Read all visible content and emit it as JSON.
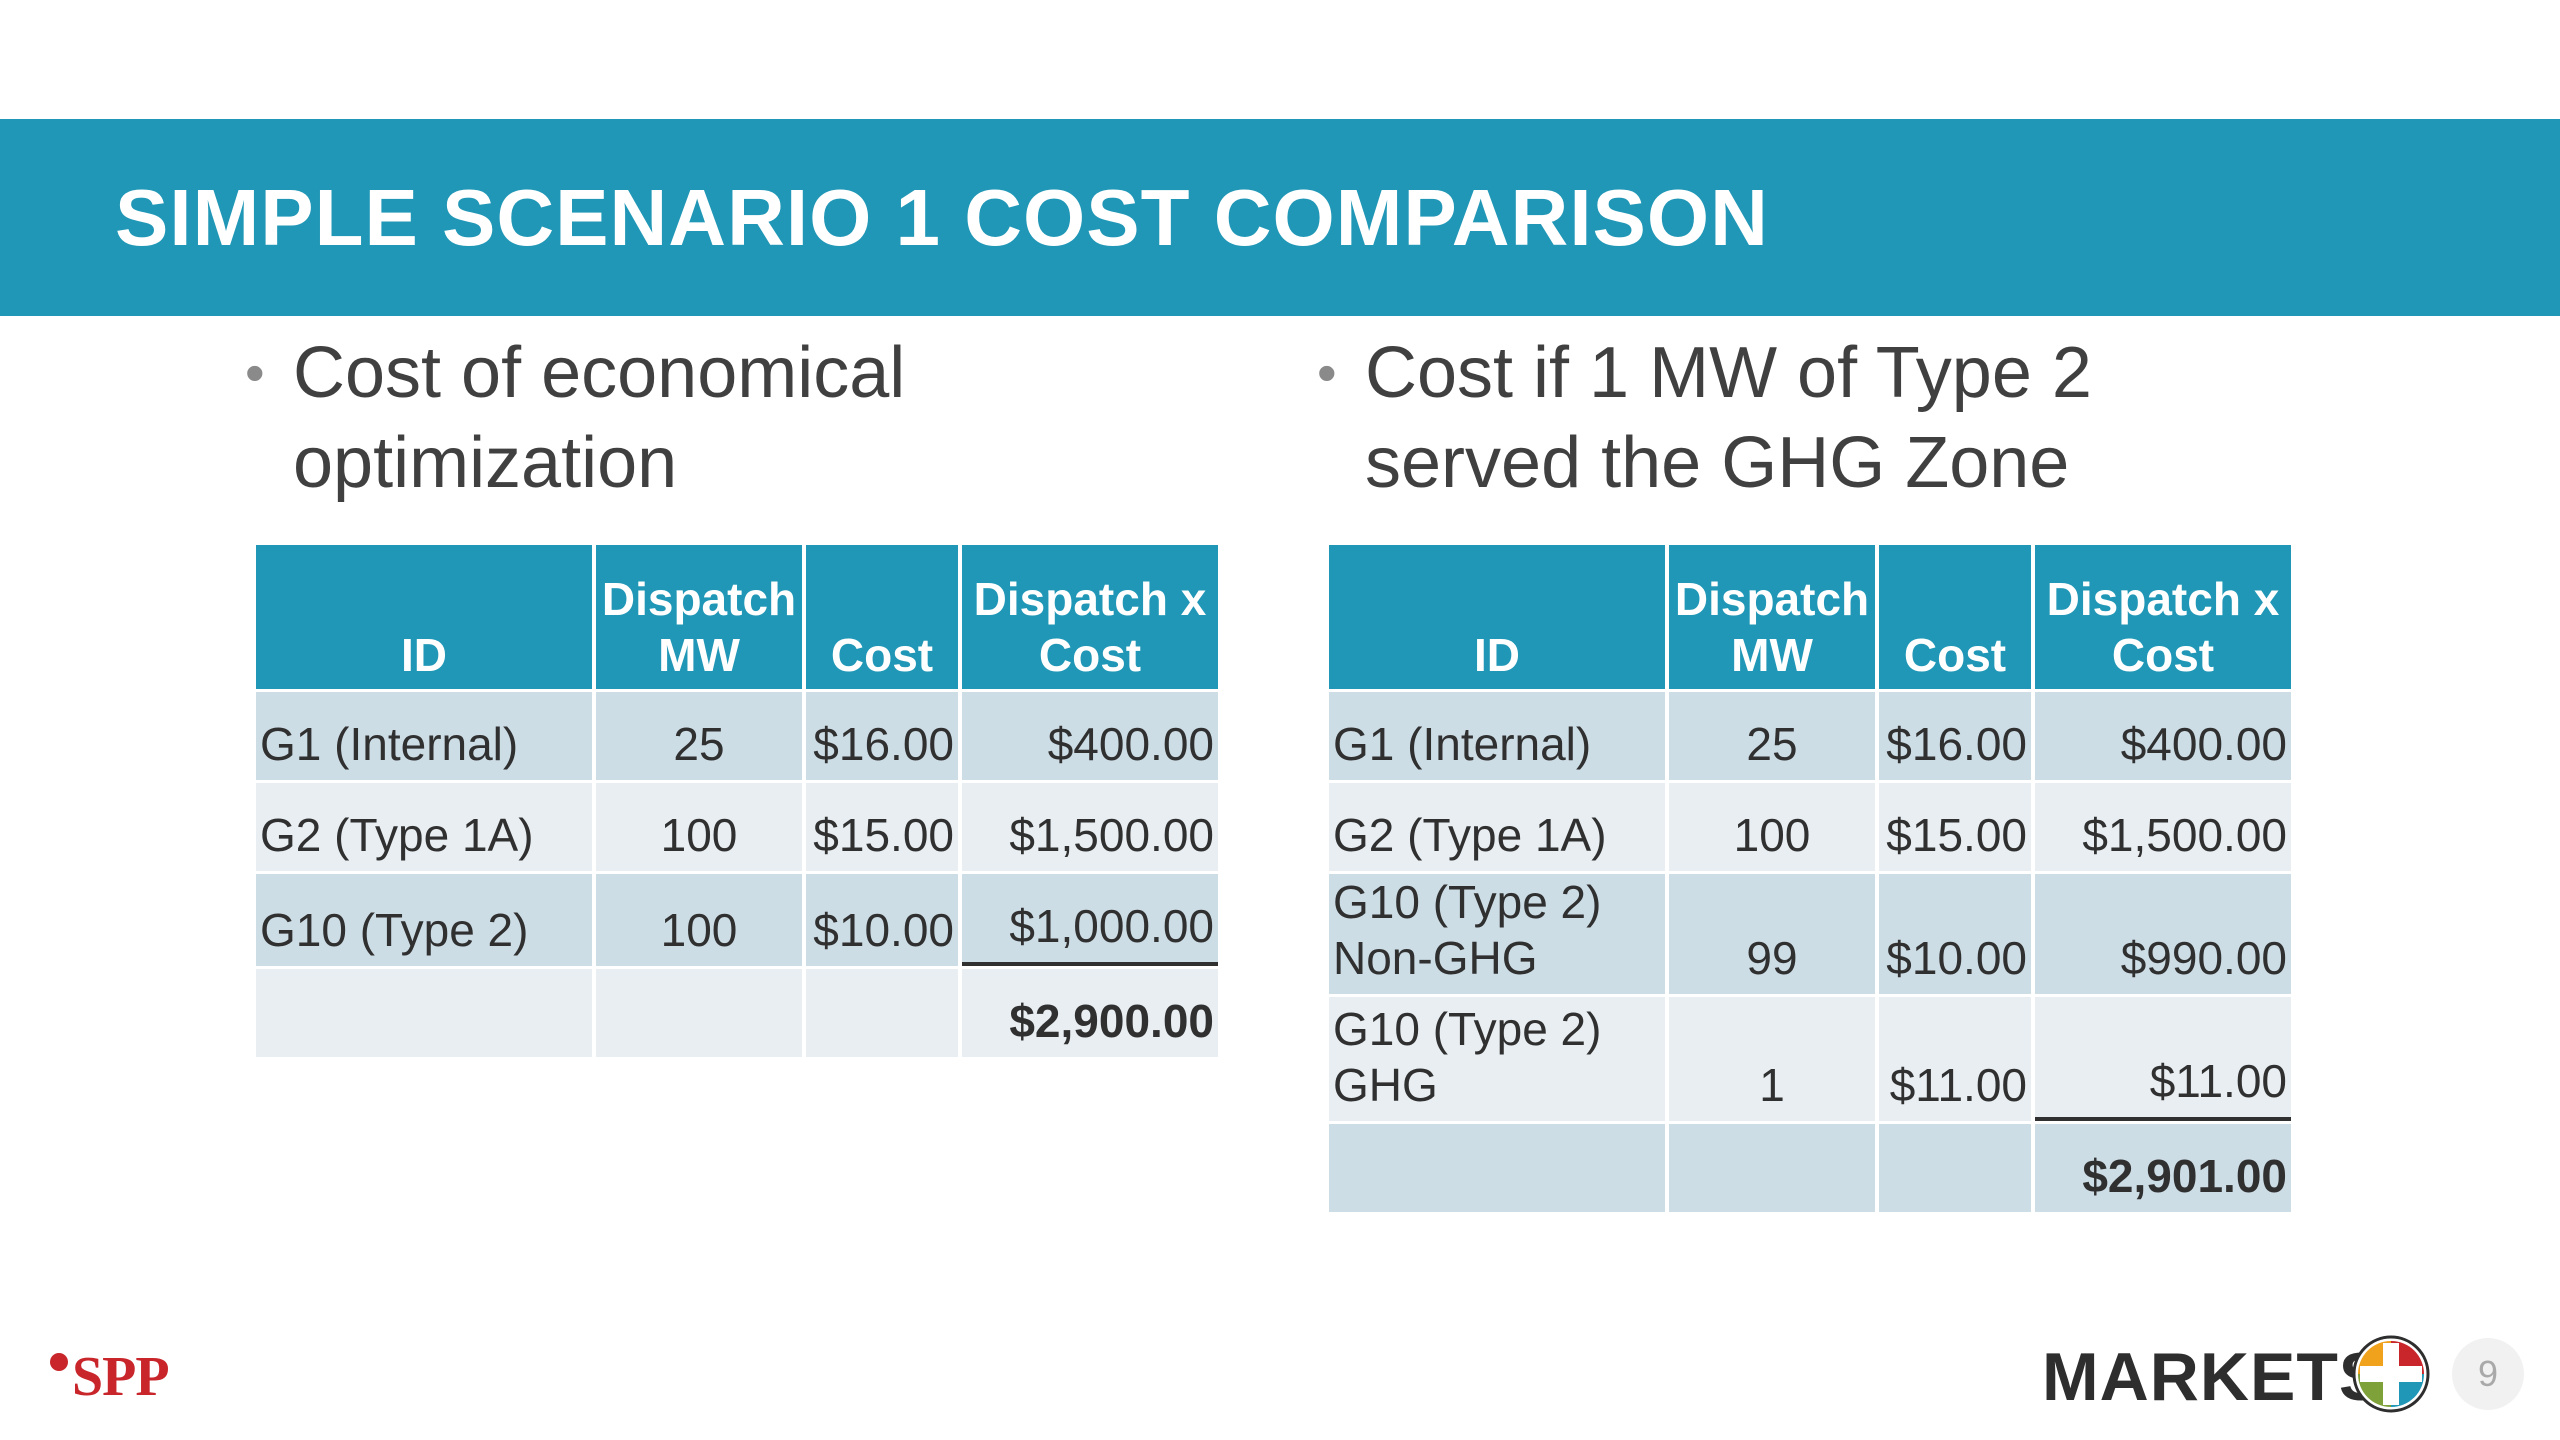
{
  "slide": {
    "title": "SIMPLE SCENARIO 1 COST COMPARISON",
    "page_number": "9"
  },
  "left": {
    "bullet": "Cost of economical\noptimization",
    "headers": [
      "ID",
      "Dispatch MW",
      "Cost",
      "Dispatch x Cost"
    ],
    "rows": [
      {
        "id": "G1 (Internal)",
        "mw": "25",
        "cost": "$16.00",
        "dxc": "$400.00"
      },
      {
        "id": "G2 (Type 1A)",
        "mw": "100",
        "cost": "$15.00",
        "dxc": "$1,500.00"
      },
      {
        "id": "G10 (Type 2)",
        "mw": "100",
        "cost": "$10.00",
        "dxc": "$1,000.00"
      }
    ],
    "total": "$2,900.00"
  },
  "right": {
    "bullet": "Cost if 1 MW of Type 2\nserved the GHG Zone",
    "headers": [
      "ID",
      "Dispatch MW",
      "Cost",
      "Dispatch x Cost"
    ],
    "rows": [
      {
        "id": "G1 (Internal)",
        "mw": "25",
        "cost": "$16.00",
        "dxc": "$400.00"
      },
      {
        "id": "G2 (Type 1A)",
        "mw": "100",
        "cost": "$15.00",
        "dxc": "$1,500.00"
      },
      {
        "id": "G10 (Type 2)\nNon-GHG",
        "mw": "99",
        "cost": "$10.00",
        "dxc": "$990.00"
      },
      {
        "id": "G10 (Type 2)\nGHG",
        "mw": "1",
        "cost": "$11.00",
        "dxc": "$11.00"
      }
    ],
    "total": "$2,901.00"
  },
  "footer": {
    "logo_text": "SPP",
    "brand_text": "MARKETS",
    "plus_icon": "markets-plus-icon",
    "plus_colors": [
      "#f0a21c",
      "#c8262b",
      "#2097b6",
      "#7fa13a"
    ]
  }
}
